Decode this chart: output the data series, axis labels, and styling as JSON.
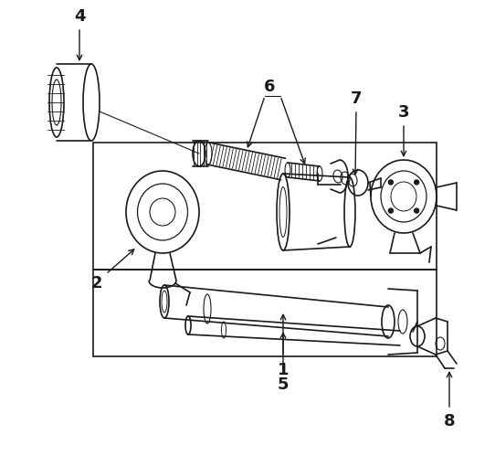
{
  "bg_color": "#ffffff",
  "line_color": "#1a1a1a",
  "fig_width": 5.42,
  "fig_height": 4.99,
  "dpi": 100,
  "label_fontsize": 13,
  "label_fontweight": "bold",
  "slope": -0.12
}
